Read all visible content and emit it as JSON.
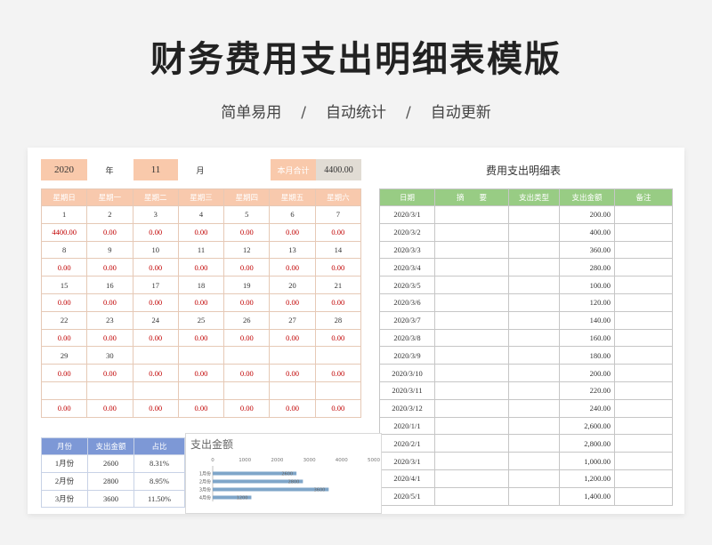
{
  "page": {
    "title": "财务费用支出明细表模版",
    "features": [
      "简单易用",
      "自动统计",
      "自动更新"
    ],
    "separator": "/"
  },
  "header": {
    "year_value": "2020",
    "year_label": "年",
    "month_value": "11",
    "month_label": "月",
    "total_label": "本月合计",
    "total_value": "4400.00"
  },
  "calendar": {
    "weekdays": [
      "星期日",
      "星期一",
      "星期二",
      "星期三",
      "星期四",
      "星期五",
      "星期六"
    ],
    "weeks": [
      {
        "days": [
          "1",
          "2",
          "3",
          "4",
          "5",
          "6",
          "7"
        ],
        "amounts": [
          "4400.00",
          "0.00",
          "0.00",
          "0.00",
          "0.00",
          "0.00",
          "0.00"
        ]
      },
      {
        "days": [
          "8",
          "9",
          "10",
          "11",
          "12",
          "13",
          "14"
        ],
        "amounts": [
          "0.00",
          "0.00",
          "0.00",
          "0.00",
          "0.00",
          "0.00",
          "0.00"
        ]
      },
      {
        "days": [
          "15",
          "16",
          "17",
          "18",
          "19",
          "20",
          "21"
        ],
        "amounts": [
          "0.00",
          "0.00",
          "0.00",
          "0.00",
          "0.00",
          "0.00",
          "0.00"
        ]
      },
      {
        "days": [
          "22",
          "23",
          "24",
          "25",
          "26",
          "27",
          "28"
        ],
        "amounts": [
          "0.00",
          "0.00",
          "0.00",
          "0.00",
          "0.00",
          "0.00",
          "0.00"
        ]
      },
      {
        "days": [
          "29",
          "30",
          "",
          "",
          "",
          "",
          ""
        ],
        "amounts": [
          "0.00",
          "0.00",
          "0.00",
          "0.00",
          "0.00",
          "0.00",
          "0.00"
        ]
      },
      {
        "days": [
          "",
          "",
          "",
          "",
          "",
          "",
          ""
        ],
        "amounts": [
          "0.00",
          "0.00",
          "0.00",
          "0.00",
          "0.00",
          "0.00",
          "0.00"
        ]
      }
    ]
  },
  "detail": {
    "title": "费用支出明细表",
    "columns": [
      "日期",
      "摘　　要",
      "支出类型",
      "支出金额",
      "备注"
    ],
    "rows": [
      {
        "date": "2020/3/1",
        "amount": "200.00"
      },
      {
        "date": "2020/3/2",
        "amount": "400.00"
      },
      {
        "date": "2020/3/3",
        "amount": "360.00"
      },
      {
        "date": "2020/3/4",
        "amount": "280.00"
      },
      {
        "date": "2020/3/5",
        "amount": "100.00"
      },
      {
        "date": "2020/3/6",
        "amount": "120.00"
      },
      {
        "date": "2020/3/7",
        "amount": "140.00"
      },
      {
        "date": "2020/3/8",
        "amount": "160.00"
      },
      {
        "date": "2020/3/9",
        "amount": "180.00"
      },
      {
        "date": "2020/3/10",
        "amount": "200.00"
      },
      {
        "date": "2020/3/11",
        "amount": "220.00"
      },
      {
        "date": "2020/3/12",
        "amount": "240.00"
      },
      {
        "date": "2020/1/1",
        "amount": "2,600.00"
      },
      {
        "date": "2020/2/1",
        "amount": "2,800.00"
      },
      {
        "date": "2020/3/1",
        "amount": "1,000.00"
      },
      {
        "date": "2020/4/1",
        "amount": "1,200.00"
      },
      {
        "date": "2020/5/1",
        "amount": "1,400.00"
      }
    ]
  },
  "summary": {
    "columns": [
      "月份",
      "支出金额",
      "占比"
    ],
    "rows": [
      {
        "month": "1月份",
        "amount": "2600",
        "ratio": "8.31%"
      },
      {
        "month": "2月份",
        "amount": "2800",
        "ratio": "8.95%"
      },
      {
        "month": "3月份",
        "amount": "3600",
        "ratio": "11.50%"
      }
    ]
  },
  "colors": {
    "calendar_header": "#f8c9ad",
    "detail_header": "#98cc84",
    "summary_header": "#7d98d6",
    "amount_red": "#c00000",
    "bar": "#7fa6c9"
  },
  "chart_data": {
    "type": "bar",
    "orientation": "horizontal",
    "title": "支出金额",
    "categories": [
      "1月份",
      "2月份",
      "3月份",
      "4月份"
    ],
    "values": [
      2600,
      2800,
      3600,
      1200
    ],
    "xlim": [
      0,
      5000
    ],
    "xticks": [
      "0",
      "1000",
      "2000",
      "3000",
      "4000",
      "5000"
    ],
    "data_labels": [
      "2600",
      "2800",
      "3600",
      "1200"
    ]
  }
}
